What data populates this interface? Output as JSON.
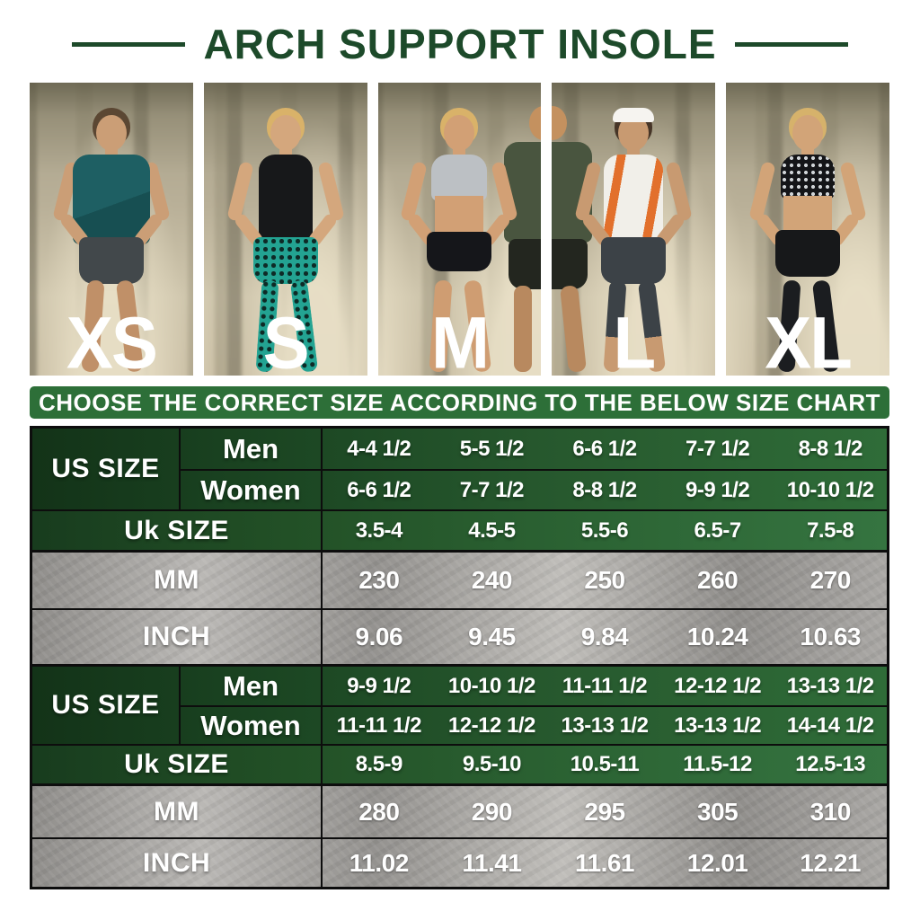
{
  "title": "ARCH SUPPORT INSOLE",
  "banner": "CHOOSE THE CORRECT SIZE ACCORDING TO THE BELOW SIZE CHART",
  "size_labels": [
    "XS",
    "S",
    "M",
    "L",
    "XL"
  ],
  "colors": {
    "title_green": "#1d4a2a",
    "banner_green": "#2d6f38",
    "table_green_dark": "#133318",
    "table_green_light": "#2f6c38",
    "row_gray": "#aaa8a5",
    "text_white": "#ffffff"
  },
  "table1": {
    "us_label": "US SIZE",
    "men_label": "Men",
    "women_label": "Women",
    "uk_label": "Uk SIZE",
    "mm_label": "MM",
    "inch_label": "INCH",
    "men": [
      "4-4 1/2",
      "5-5 1/2",
      "6-6 1/2",
      "7-7 1/2",
      "8-8 1/2"
    ],
    "women": [
      "6-6 1/2",
      "7-7 1/2",
      "8-8 1/2",
      "9-9 1/2",
      "10-10 1/2"
    ],
    "uk": [
      "3.5-4",
      "4.5-5",
      "5.5-6",
      "6.5-7",
      "7.5-8"
    ],
    "mm": [
      "230",
      "240",
      "250",
      "260",
      "270"
    ],
    "inch": [
      "9.06",
      "9.45",
      "9.84",
      "10.24",
      "10.63"
    ]
  },
  "table2": {
    "us_label": "US SIZE",
    "men_label": "Men",
    "women_label": "Women",
    "uk_label": "Uk SIZE",
    "mm_label": "MM",
    "inch_label": "INCH",
    "men": [
      "9-9 1/2",
      "10-10 1/2",
      "11-11 1/2",
      "12-12 1/2",
      "13-13 1/2"
    ],
    "women": [
      "11-11 1/2",
      "12-12 1/2",
      "13-13 1/2",
      "13-13 1/2",
      "14-14 1/2"
    ],
    "uk": [
      "8.5-9",
      "9.5-10",
      "10.5-11",
      "11.5-12",
      "12.5-13"
    ],
    "mm": [
      "280",
      "290",
      "295",
      "305",
      "310"
    ],
    "inch": [
      "11.02",
      "11.41",
      "11.61",
      "12.01",
      "12.21"
    ]
  },
  "chart_data": {
    "type": "table",
    "title": "ARCH SUPPORT INSOLE",
    "subtitle": "CHOOSE THE CORRECT SIZE ACCORDING TO THE BELOW SIZE CHART",
    "columns": [
      "XS",
      "S",
      "M",
      "L",
      "XL"
    ],
    "tables": [
      {
        "rows": [
          {
            "label": "US SIZE Men",
            "values": [
              "4-4 1/2",
              "5-5 1/2",
              "6-6 1/2",
              "7-7 1/2",
              "8-8 1/2"
            ]
          },
          {
            "label": "US SIZE Women",
            "values": [
              "6-6 1/2",
              "7-7 1/2",
              "8-8 1/2",
              "9-9 1/2",
              "10-10 1/2"
            ]
          },
          {
            "label": "Uk SIZE",
            "values": [
              "3.5-4",
              "4.5-5",
              "5.5-6",
              "6.5-7",
              "7.5-8"
            ]
          },
          {
            "label": "MM",
            "values": [
              230,
              240,
              250,
              260,
              270
            ]
          },
          {
            "label": "INCH",
            "values": [
              9.06,
              9.45,
              9.84,
              10.24,
              10.63
            ]
          }
        ]
      },
      {
        "rows": [
          {
            "label": "US SIZE Men",
            "values": [
              "9-9 1/2",
              "10-10 1/2",
              "11-11 1/2",
              "12-12 1/2",
              "13-13 1/2"
            ]
          },
          {
            "label": "US SIZE Women",
            "values": [
              "11-11 1/2",
              "12-12 1/2",
              "13-13 1/2",
              "13-13 1/2",
              "14-14 1/2"
            ]
          },
          {
            "label": "Uk SIZE",
            "values": [
              "8.5-9",
              "9.5-10",
              "10.5-11",
              "11.5-12",
              "12.5-13"
            ]
          },
          {
            "label": "MM",
            "values": [
              280,
              290,
              295,
              305,
              310
            ]
          },
          {
            "label": "INCH",
            "values": [
              11.02,
              11.41,
              11.61,
              12.01,
              12.21
            ]
          }
        ]
      }
    ]
  }
}
